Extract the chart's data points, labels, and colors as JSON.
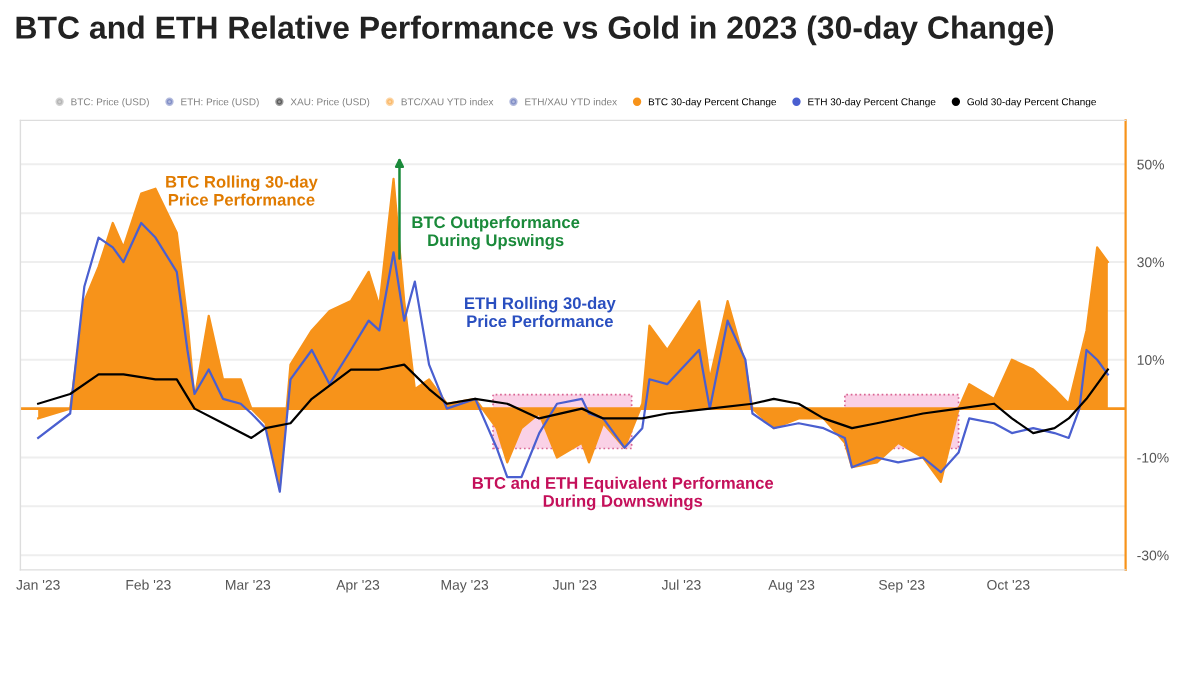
{
  "chart_data": {
    "type": "area",
    "title": "BTC and ETH Relative Performance vs Gold in 2023 (30-day Change)",
    "series": [
      {
        "name": "BTC: Price (USD)",
        "color": "#8c8c8c"
      },
      {
        "name": "ETH: Price (USD)",
        "color": "#3b4fa8"
      },
      {
        "name": "XAU: Price (USD)",
        "color": "#000000"
      },
      {
        "name": "BTC/XAU YTD index",
        "color": "#f7931a"
      },
      {
        "name": "ETH/XAU YTD index",
        "color": "#3b4fa8"
      },
      {
        "name": "BTC 30-day Percent Change",
        "color": "#f7931a",
        "x": [
          "2023-01-01",
          "2023-01-10",
          "2023-01-14",
          "2023-01-18",
          "2023-01-22",
          "2023-01-25",
          "2023-01-30",
          "2023-02-03",
          "2023-02-09",
          "2023-02-12",
          "2023-02-14",
          "2023-02-18",
          "2023-02-22",
          "2023-02-27",
          "2023-03-02",
          "2023-03-06",
          "2023-03-10",
          "2023-03-13",
          "2023-03-19",
          "2023-03-24",
          "2023-03-30",
          "2023-04-04",
          "2023-04-07",
          "2023-04-11",
          "2023-04-14",
          "2023-04-17",
          "2023-04-21",
          "2023-04-26",
          "2023-05-04",
          "2023-05-10",
          "2023-05-13",
          "2023-05-17",
          "2023-05-22",
          "2023-05-27",
          "2023-06-03",
          "2023-06-05",
          "2023-06-09",
          "2023-06-15",
          "2023-06-20",
          "2023-06-22",
          "2023-06-27",
          "2023-07-06",
          "2023-07-09",
          "2023-07-14",
          "2023-07-19",
          "2023-07-21",
          "2023-07-27",
          "2023-08-03",
          "2023-08-10",
          "2023-08-16",
          "2023-08-18",
          "2023-08-25",
          "2023-08-31",
          "2023-09-07",
          "2023-09-12",
          "2023-09-17",
          "2023-09-20",
          "2023-09-27",
          "2023-10-02",
          "2023-10-08",
          "2023-10-14",
          "2023-10-18",
          "2023-10-23",
          "2023-10-26",
          "2023-10-29"
        ],
        "values": [
          -2,
          0,
          22,
          29,
          38,
          33,
          44,
          45,
          36,
          18,
          2,
          19,
          6,
          6,
          0,
          -3,
          -16,
          9,
          16,
          20,
          22,
          28,
          21,
          47,
          22,
          4,
          6,
          1,
          2,
          -4,
          -11,
          -4,
          -1,
          -10,
          -7,
          -11,
          -3,
          -8,
          1,
          17,
          12,
          22,
          6,
          22,
          9,
          0,
          -4,
          -2,
          -2,
          -7,
          -12,
          -11,
          -7,
          -10,
          -15,
          0,
          5,
          2,
          10,
          8,
          4,
          1,
          16,
          33,
          30
        ]
      },
      {
        "name": "ETH 30-day Percent Change",
        "type": "line",
        "color": "#4a5fd0",
        "x": [
          "2023-01-01",
          "2023-01-10",
          "2023-01-14",
          "2023-01-18",
          "2023-01-22",
          "2023-01-25",
          "2023-01-30",
          "2023-02-03",
          "2023-02-09",
          "2023-02-12",
          "2023-02-14",
          "2023-02-18",
          "2023-02-22",
          "2023-02-27",
          "2023-03-02",
          "2023-03-06",
          "2023-03-10",
          "2023-03-13",
          "2023-03-19",
          "2023-03-24",
          "2023-03-30",
          "2023-04-04",
          "2023-04-07",
          "2023-04-11",
          "2023-04-14",
          "2023-04-17",
          "2023-04-21",
          "2023-04-26",
          "2023-05-04",
          "2023-05-10",
          "2023-05-13",
          "2023-05-17",
          "2023-05-22",
          "2023-05-27",
          "2023-06-03",
          "2023-06-05",
          "2023-06-09",
          "2023-06-15",
          "2023-06-20",
          "2023-06-22",
          "2023-06-27",
          "2023-07-06",
          "2023-07-09",
          "2023-07-14",
          "2023-07-19",
          "2023-07-21",
          "2023-07-27",
          "2023-08-03",
          "2023-08-10",
          "2023-08-16",
          "2023-08-18",
          "2023-08-25",
          "2023-08-31",
          "2023-09-07",
          "2023-09-12",
          "2023-09-17",
          "2023-09-20",
          "2023-09-27",
          "2023-10-02",
          "2023-10-08",
          "2023-10-14",
          "2023-10-18",
          "2023-10-21",
          "2023-10-23",
          "2023-10-26",
          "2023-10-29"
        ],
        "values": [
          -6,
          -1,
          25,
          35,
          33,
          30,
          38,
          35,
          28,
          12,
          3,
          8,
          2,
          1,
          -1,
          -4,
          -17,
          6,
          12,
          5,
          12,
          18,
          16,
          32,
          18,
          26,
          9,
          0,
          2,
          -8,
          -14,
          -14,
          -5,
          1,
          2,
          -1,
          -2,
          -8,
          -4,
          6,
          5,
          12,
          0,
          18,
          10,
          -1,
          -4,
          -3,
          -4,
          -6,
          -12,
          -10,
          -11,
          -10,
          -13,
          -9,
          -2,
          -3,
          -5,
          -4,
          -5,
          -6,
          0,
          12,
          10,
          7
        ]
      },
      {
        "name": "Gold 30-day Percent Change",
        "type": "line",
        "color": "#000000",
        "x": [
          "2023-01-01",
          "2023-01-10",
          "2023-01-18",
          "2023-01-25",
          "2023-02-03",
          "2023-02-09",
          "2023-02-14",
          "2023-02-22",
          "2023-03-02",
          "2023-03-06",
          "2023-03-13",
          "2023-03-19",
          "2023-03-30",
          "2023-04-07",
          "2023-04-14",
          "2023-04-21",
          "2023-04-26",
          "2023-05-04",
          "2023-05-13",
          "2023-05-22",
          "2023-06-03",
          "2023-06-09",
          "2023-06-20",
          "2023-06-27",
          "2023-07-09",
          "2023-07-21",
          "2023-07-27",
          "2023-08-03",
          "2023-08-10",
          "2023-08-18",
          "2023-08-25",
          "2023-09-07",
          "2023-09-17",
          "2023-09-27",
          "2023-10-02",
          "2023-10-08",
          "2023-10-14",
          "2023-10-18",
          "2023-10-23",
          "2023-10-29"
        ],
        "values": [
          1,
          3,
          7,
          7,
          6,
          6,
          0,
          -3,
          -6,
          -4,
          -3,
          2,
          8,
          8,
          9,
          4,
          1,
          2,
          1,
          -2,
          0,
          -2,
          -2,
          -1,
          0,
          1,
          2,
          1,
          -2,
          -4,
          -3,
          -1,
          0,
          1,
          -2,
          -5,
          -4,
          -2,
          2,
          8
        ]
      }
    ],
    "xlim": [
      "2022-12-27",
      "2023-11-03"
    ],
    "xticks": [
      {
        "value": "2023-01-01",
        "label": "Jan '23"
      },
      {
        "value": "2023-02-01",
        "label": "Feb '23"
      },
      {
        "value": "2023-03-01",
        "label": "Mar '23"
      },
      {
        "value": "2023-04-01",
        "label": "Apr '23"
      },
      {
        "value": "2023-05-01",
        "label": "May '23"
      },
      {
        "value": "2023-06-01",
        "label": "Jun '23"
      },
      {
        "value": "2023-07-01",
        "label": "Jul '23"
      },
      {
        "value": "2023-08-01",
        "label": "Aug '23"
      },
      {
        "value": "2023-09-01",
        "label": "Sep '23"
      },
      {
        "value": "2023-10-01",
        "label": "Oct '23"
      }
    ],
    "ylim": [
      -33,
      59
    ],
    "yticks": [
      {
        "value": -30,
        "label": "-30%"
      },
      {
        "value": -20,
        "label": null
      },
      {
        "value": -10,
        "label": "-10%"
      },
      {
        "value": 0,
        "label": null
      },
      {
        "value": 10,
        "label": "10%"
      },
      {
        "value": 20,
        "label": null
      },
      {
        "value": 30,
        "label": "30%"
      },
      {
        "value": 40,
        "label": null
      },
      {
        "value": 50,
        "label": "50%"
      }
    ],
    "grid": "y",
    "ref_lines": [
      {
        "axis": "y",
        "value": 0,
        "color": "#f7931a"
      }
    ],
    "legend": "top",
    "bands": [
      {
        "axis": "x",
        "from": "2023-05-09",
        "to": "2023-06-17",
        "color": "#f9c6e0"
      },
      {
        "axis": "x",
        "from": "2023-08-16",
        "to": "2023-09-17",
        "color": "#f9c6e0"
      }
    ],
    "annotations": [
      "BTC Rolling 30-day\nPrice Performance",
      "BTC Outperformance\nDuring Upswings",
      "ETH Rolling 30-day\nPrice Performance",
      "BTC and ETH Equivalent Performance\nDuring Downswings"
    ]
  }
}
